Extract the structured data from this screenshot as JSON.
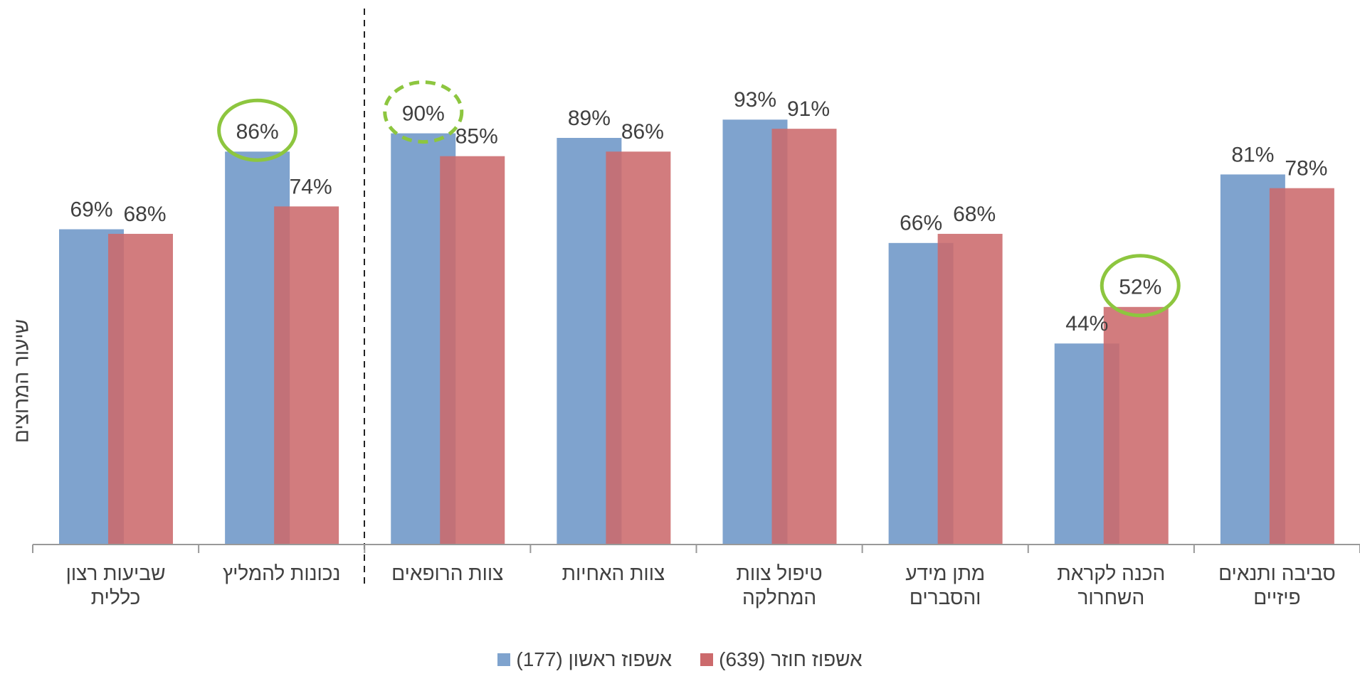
{
  "chart_data": {
    "type": "bar",
    "y_label": "שיעור המרוצים",
    "categories": [
      "שביעות רצון כללית",
      "נכונות להמליץ",
      "צוות הרופאים",
      "צוות האחיות",
      "טיפול צוות המחלקה",
      "מתן מידע והסברים",
      "הכנה לקראת השחרור",
      "סביבה ותנאים פיזיים"
    ],
    "series": [
      {
        "name": "אשפוז ראשון (177)",
        "color": "#7fa3ce",
        "values": [
          69,
          86,
          90,
          89,
          93,
          66,
          44,
          81
        ],
        "value_labels": [
          "69%",
          "86%",
          "90%",
          "89%",
          "93%",
          "66%",
          "44%",
          "81%"
        ]
      },
      {
        "name": "אשפוז חוזר (639)",
        "color": "#cc6a6c",
        "values": [
          68,
          74,
          85,
          86,
          91,
          68,
          52,
          78
        ],
        "value_labels": [
          "68%",
          "74%",
          "85%",
          "86%",
          "91%",
          "68%",
          "52%",
          "78%"
        ]
      }
    ],
    "ylim": [
      0,
      96
    ],
    "grid": false
  }
}
